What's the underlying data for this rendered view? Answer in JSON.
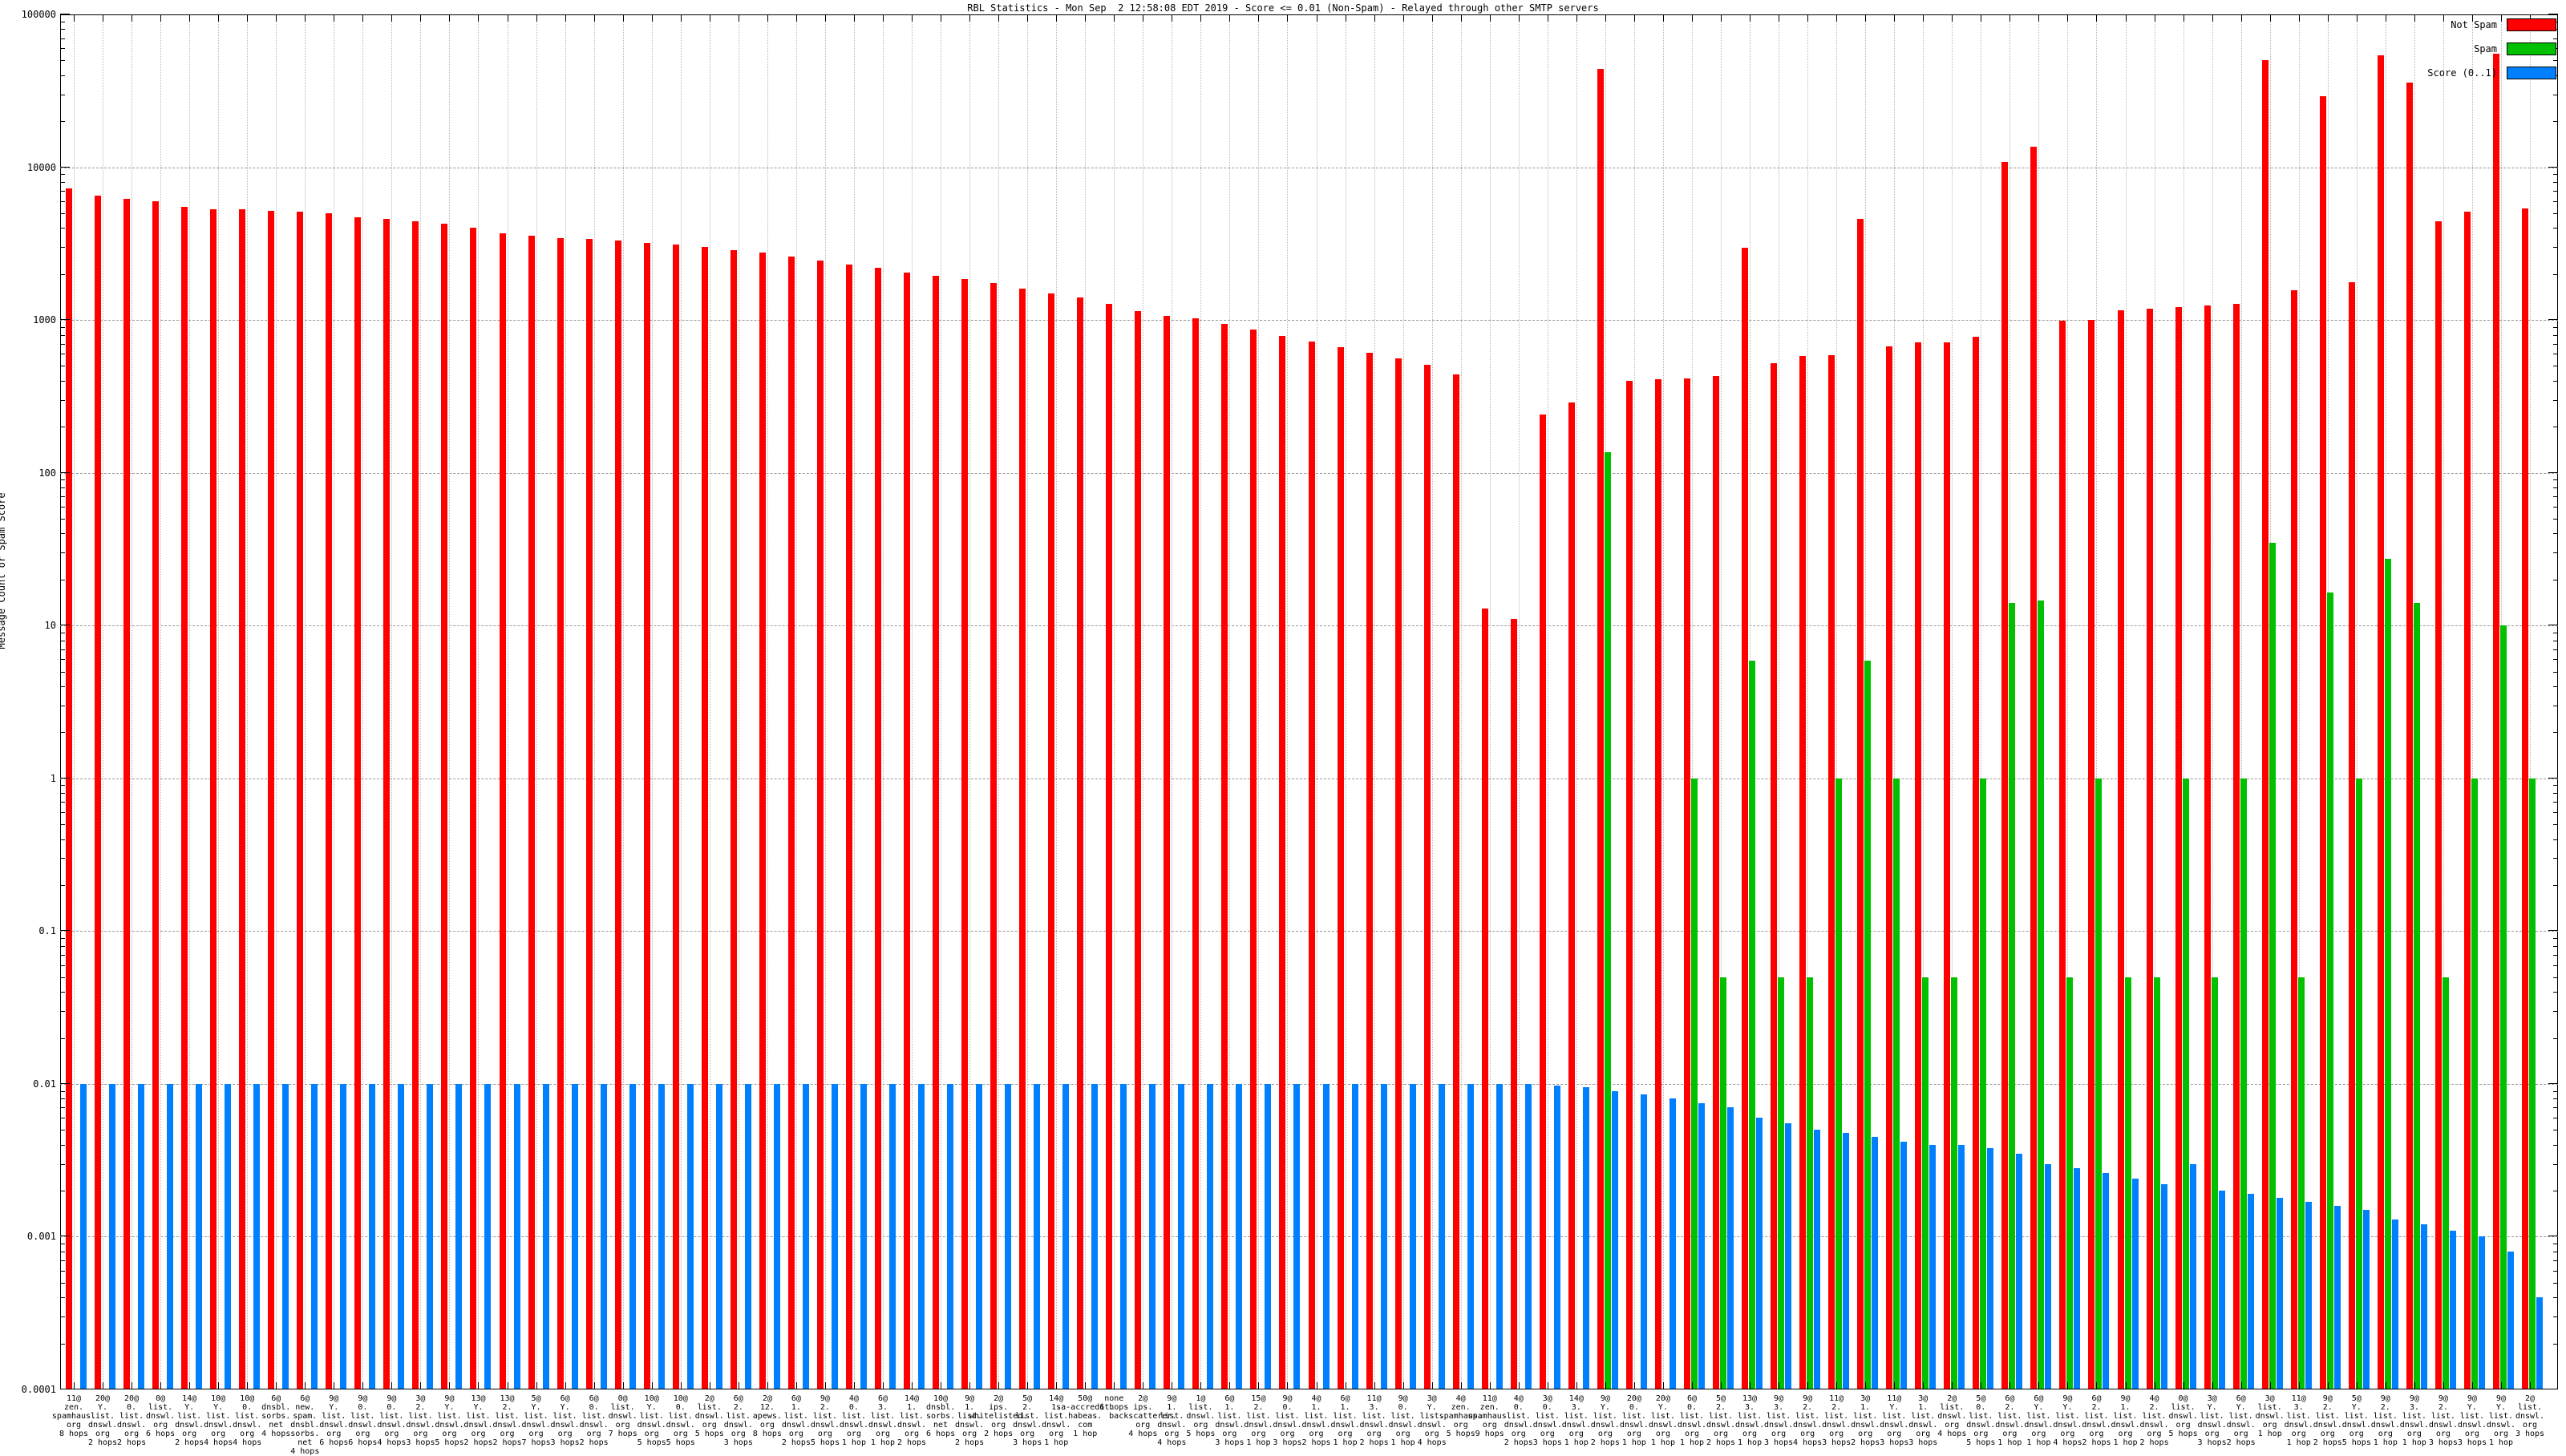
{
  "title": "RBL Statistics - Mon Sep  2 12:58:08 EDT 2019 - Score <= 0.01 (Non-Spam) - Relayed through other SMTP servers",
  "y_axis": {
    "label": "Message Count or Spam Score",
    "scale": "log",
    "min": 0.0001,
    "max": 100000,
    "ticks": [
      "100000",
      "10000",
      "1000",
      "100",
      "10",
      "1",
      "0.1",
      "0.01",
      "0.001",
      "0.0001"
    ]
  },
  "legend": [
    {
      "label": "Not Spam",
      "color": "#ff0000"
    },
    {
      "label": "Spam",
      "color": "#00c000"
    },
    {
      "label": "Score (0..1)",
      "color": "#0080ff"
    }
  ],
  "chart_data": {
    "type": "bar",
    "ylabel": "Message Count or Spam Score",
    "ylim": [
      0.0001,
      100000
    ],
    "grid": true,
    "legend_position": "top-right",
    "series_names": [
      "Not Spam",
      "Spam",
      "Score (0..1)"
    ],
    "groups": [
      {
        "count": "11@",
        "domain": "zen.spamhaus.org",
        "hops": "8 hops",
        "not_spam": 7300,
        "spam": null,
        "score": 0.01
      },
      {
        "count": "20@",
        "domain": "Y.list.dnswl.org",
        "hops": "2 hops",
        "not_spam": 6500,
        "spam": null,
        "score": 0.01
      },
      {
        "count": "20@",
        "domain": "0.list.dnswl.org",
        "hops": "2 hops",
        "not_spam": 6200,
        "spam": null,
        "score": 0.01
      },
      {
        "count": "0@",
        "domain": "list.dnswl.org",
        "hops": "6 hops",
        "not_spam": 6000,
        "spam": null,
        "score": 0.01
      },
      {
        "count": "14@",
        "domain": "Y.list.dnswl.org",
        "hops": "2 hops",
        "not_spam": 5500,
        "spam": null,
        "score": 0.01
      },
      {
        "count": "10@",
        "domain": "Y.list.dnswl.org",
        "hops": "4 hops",
        "not_spam": 5300,
        "spam": null,
        "score": 0.01
      },
      {
        "count": "10@",
        "domain": "0.list.dnswl.org",
        "hops": "4 hops",
        "not_spam": 5300,
        "spam": null,
        "score": 0.01
      },
      {
        "count": "6@",
        "domain": "dnsbl.sorbs.net",
        "hops": "4 hops",
        "not_spam": 5200,
        "spam": null,
        "score": 0.01
      },
      {
        "count": "6@",
        "domain": "new.spam.dnsbl.sorbs.net",
        "hops": "4 hops",
        "not_spam": 5100,
        "spam": null,
        "score": 0.01
      },
      {
        "count": "9@",
        "domain": "Y.list.dnswl.org",
        "hops": "6 hops",
        "not_spam": 5000,
        "spam": null,
        "score": 0.01
      },
      {
        "count": "9@",
        "domain": "0.list.dnswl.org",
        "hops": "6 hops",
        "not_spam": 4700,
        "spam": null,
        "score": 0.01
      },
      {
        "count": "9@",
        "domain": "0.list.dnswl.org",
        "hops": "4 hops",
        "not_spam": 4600,
        "spam": null,
        "score": 0.01
      },
      {
        "count": "3@",
        "domain": "2.list.dnswl.org",
        "hops": "3 hops",
        "not_spam": 4400,
        "spam": null,
        "score": 0.01
      },
      {
        "count": "9@",
        "domain": "Y.list.dnswl.org",
        "hops": "5 hops",
        "not_spam": 4250,
        "spam": null,
        "score": 0.01
      },
      {
        "count": "13@",
        "domain": "Y.list.dnswl.org",
        "hops": "2 hops",
        "not_spam": 4000,
        "spam": null,
        "score": 0.01
      },
      {
        "count": "13@",
        "domain": "2.list.dnswl.org",
        "hops": "2 hops",
        "not_spam": 3700,
        "spam": null,
        "score": 0.01
      },
      {
        "count": "5@",
        "domain": "Y.list.dnswl.org",
        "hops": "7 hops",
        "not_spam": 3550,
        "spam": null,
        "score": 0.01
      },
      {
        "count": "6@",
        "domain": "Y.list.dnswl.org",
        "hops": "3 hops",
        "not_spam": 3450,
        "spam": null,
        "score": 0.01
      },
      {
        "count": "6@",
        "domain": "0.list.dnswl.org",
        "hops": "2 hops",
        "not_spam": 3400,
        "spam": null,
        "score": 0.01
      },
      {
        "count": "0@",
        "domain": "list.dnswl.org",
        "hops": "7 hops",
        "not_spam": 3300,
        "spam": null,
        "score": 0.01
      },
      {
        "count": "10@",
        "domain": "Y.list.dnswl.org",
        "hops": "5 hops",
        "not_spam": 3200,
        "spam": null,
        "score": 0.01
      },
      {
        "count": "10@",
        "domain": "0.list.dnswl.org",
        "hops": "5 hops",
        "not_spam": 3100,
        "spam": null,
        "score": 0.01
      },
      {
        "count": "2@",
        "domain": "list.dnswl.org",
        "hops": "5 hops",
        "not_spam": 3000,
        "spam": null,
        "score": 0.01
      },
      {
        "count": "6@",
        "domain": "2.list.dnswl.org",
        "hops": "3 hops",
        "not_spam": 2850,
        "spam": null,
        "score": 0.01
      },
      {
        "count": "2@",
        "domain": "12.apews.org",
        "hops": "8 hops",
        "not_spam": 2750,
        "spam": null,
        "score": 0.01
      },
      {
        "count": "6@",
        "domain": "1.list.dnswl.org",
        "hops": "2 hops",
        "not_spam": 2600,
        "spam": null,
        "score": 0.01
      },
      {
        "count": "9@",
        "domain": "2.list.dnswl.org",
        "hops": "5 hops",
        "not_spam": 2450,
        "spam": null,
        "score": 0.01
      },
      {
        "count": "4@",
        "domain": "0.list.dnswl.org",
        "hops": "1 hop",
        "not_spam": 2300,
        "spam": null,
        "score": 0.01
      },
      {
        "count": "6@",
        "domain": "3.list.dnswl.org",
        "hops": "1 hop",
        "not_spam": 2200,
        "spam": null,
        "score": 0.01
      },
      {
        "count": "14@",
        "domain": "1.list.dnswl.org",
        "hops": "2 hops",
        "not_spam": 2050,
        "spam": null,
        "score": 0.01
      },
      {
        "count": "10@",
        "domain": "dnsbl.sorbs.net",
        "hops": "6 hops",
        "not_spam": 1950,
        "spam": null,
        "score": 0.01
      },
      {
        "count": "9@",
        "domain": "1.list.dnswl.org",
        "hops": "2 hops",
        "not_spam": 1850,
        "spam": null,
        "score": 0.01
      },
      {
        "count": "2@",
        "domain": "ips.whitelisted.org",
        "hops": "2 hops",
        "not_spam": 1750,
        "spam": null,
        "score": 0.01
      },
      {
        "count": "5@",
        "domain": "2.list.dnswl.org",
        "hops": "3 hops",
        "not_spam": 1600,
        "spam": null,
        "score": 0.01
      },
      {
        "count": "14@",
        "domain": "1.list.dnswl.org",
        "hops": "1 hop",
        "not_spam": 1500,
        "spam": null,
        "score": 0.01
      },
      {
        "count": "50@",
        "domain": "sa-accredit.habeas.com",
        "hops": "1 hop",
        "not_spam": 1400,
        "spam": null,
        "score": 0.01
      },
      {
        "count": "none",
        "domain": "",
        "hops": "6 hops",
        "not_spam": 1270,
        "spam": null,
        "score": 0.01
      },
      {
        "count": "2@",
        "domain": "ips.backscatterer.org",
        "hops": "4 hops",
        "not_spam": 1150,
        "spam": null,
        "score": 0.01
      },
      {
        "count": "9@",
        "domain": "1.list.dnswl.org",
        "hops": "4 hops",
        "not_spam": 1070,
        "spam": null,
        "score": 0.01
      },
      {
        "count": "1@",
        "domain": "list.dnswl.org",
        "hops": "5 hops",
        "not_spam": 1020,
        "spam": null,
        "score": 0.01
      },
      {
        "count": "6@",
        "domain": "1.list.dnswl.org",
        "hops": "3 hops",
        "not_spam": 940,
        "spam": null,
        "score": 0.01
      },
      {
        "count": "15@",
        "domain": "2.list.dnswl.org",
        "hops": "1 hop",
        "not_spam": 870,
        "spam": null,
        "score": 0.01
      },
      {
        "count": "9@",
        "domain": "0.list.dnswl.org",
        "hops": "3 hops",
        "not_spam": 790,
        "spam": null,
        "score": 0.01
      },
      {
        "count": "4@",
        "domain": "1.list.dnswl.org",
        "hops": "2 hops",
        "not_spam": 720,
        "spam": null,
        "score": 0.01
      },
      {
        "count": "6@",
        "domain": "1.list.dnswl.org",
        "hops": "1 hop",
        "not_spam": 660,
        "spam": null,
        "score": 0.01
      },
      {
        "count": "11@",
        "domain": "3.list.dnswl.org",
        "hops": "2 hops",
        "not_spam": 610,
        "spam": null,
        "score": 0.01
      },
      {
        "count": "9@",
        "domain": "0.list.dnswl.org",
        "hops": "1 hop",
        "not_spam": 560,
        "spam": null,
        "score": 0.01
      },
      {
        "count": "3@",
        "domain": "Y.list.dnswl.org",
        "hops": "4 hops",
        "not_spam": 510,
        "spam": null,
        "score": 0.01
      },
      {
        "count": "4@",
        "domain": "zen.spamhaus.org",
        "hops": "5 hops",
        "not_spam": 440,
        "spam": null,
        "score": 0.01
      },
      {
        "count": "11@",
        "domain": "zen.spamhaus.org",
        "hops": "9 hops",
        "not_spam": 13,
        "spam": null,
        "score": 0.01
      },
      {
        "count": "4@",
        "domain": "0.list.dnswl.org",
        "hops": "2 hops",
        "not_spam": 11,
        "spam": null,
        "score": 0.01
      },
      {
        "count": "3@",
        "domain": "0.list.dnswl.org",
        "hops": "3 hops",
        "not_spam": 240,
        "spam": null,
        "score": 0.0098
      },
      {
        "count": "14@",
        "domain": "3.list.dnswl.org",
        "hops": "1 hop",
        "not_spam": 290,
        "spam": null,
        "score": 0.0095
      },
      {
        "count": "9@",
        "domain": "Y.list.dnswl.org",
        "hops": "2 hops",
        "not_spam": 44000,
        "spam": 136,
        "score": 0.009
      },
      {
        "count": "20@",
        "domain": "0.list.dnswl.org",
        "hops": "1 hop",
        "not_spam": 400,
        "spam": null,
        "score": 0.0085
      },
      {
        "count": "20@",
        "domain": "Y.list.dnswl.org",
        "hops": "1 hop",
        "not_spam": 410,
        "spam": null,
        "score": 0.008
      },
      {
        "count": "6@",
        "domain": "0.list.dnswl.org",
        "hops": "1 hop",
        "not_spam": 415,
        "spam": 1.0,
        "score": 0.0075
      },
      {
        "count": "5@",
        "domain": "2.list.dnswl.org",
        "hops": "2 hops",
        "not_spam": 430,
        "spam": 0.05,
        "score": 0.007
      },
      {
        "count": "13@",
        "domain": "3.list.dnswl.org",
        "hops": "1 hop",
        "not_spam": 2980,
        "spam": 5.9,
        "score": 0.006
      },
      {
        "count": "9@",
        "domain": "3.list.dnswl.org",
        "hops": "3 hops",
        "not_spam": 520,
        "spam": 0.05,
        "score": 0.0055
      },
      {
        "count": "9@",
        "domain": "2.list.dnswl.org",
        "hops": "4 hops",
        "not_spam": 580,
        "spam": 0.05,
        "score": 0.005
      },
      {
        "count": "11@",
        "domain": "2.list.dnswl.org",
        "hops": "3 hops",
        "not_spam": 590,
        "spam": 1.0,
        "score": 0.0048
      },
      {
        "count": "3@",
        "domain": "1.list.dnswl.org",
        "hops": "2 hops",
        "not_spam": 4570,
        "spam": 5.9,
        "score": 0.0045
      },
      {
        "count": "11@",
        "domain": "Y.list.dnswl.org",
        "hops": "3 hops",
        "not_spam": 670,
        "spam": 1.0,
        "score": 0.0042
      },
      {
        "count": "3@",
        "domain": "1.list.dnswl.org",
        "hops": "3 hops",
        "not_spam": 710,
        "spam": 0.05,
        "score": 0.004
      },
      {
        "count": "2@",
        "domain": "list.dnswl.org",
        "hops": "4 hops",
        "not_spam": 710,
        "spam": 0.05,
        "score": 0.004
      },
      {
        "count": "5@",
        "domain": "0.list.dnswl.org",
        "hops": "5 hops",
        "not_spam": 780,
        "spam": 1.0,
        "score": 0.0038
      },
      {
        "count": "6@",
        "domain": "2.list.dnswl.org",
        "hops": "1 hop",
        "not_spam": 10800,
        "spam": 14,
        "score": 0.0035
      },
      {
        "count": "6@",
        "domain": "Y.list.dnswl.org",
        "hops": "1 hop",
        "not_spam": 13600,
        "spam": 14.6,
        "score": 0.003
      },
      {
        "count": "9@",
        "domain": "Y.list.dnswl.org",
        "hops": "4 hops",
        "not_spam": 990,
        "spam": 0.05,
        "score": 0.0028
      },
      {
        "count": "6@",
        "domain": "2.list.dnswl.org",
        "hops": "2 hops",
        "not_spam": 1000,
        "spam": 1.0,
        "score": 0.0026
      },
      {
        "count": "9@",
        "domain": "1.list.dnswl.org",
        "hops": "1 hop",
        "not_spam": 1160,
        "spam": 0.05,
        "score": 0.0024
      },
      {
        "count": "4@",
        "domain": "2.list.dnswl.org",
        "hops": "2 hops",
        "not_spam": 1180,
        "spam": 0.05,
        "score": 0.0022
      },
      {
        "count": "0@",
        "domain": "list.dnswl.org",
        "hops": "5 hops",
        "not_spam": 1220,
        "spam": 1.0,
        "score": 0.003
      },
      {
        "count": "3@",
        "domain": "Y.list.dnswl.org",
        "hops": "3 hops",
        "not_spam": 1250,
        "spam": 0.05,
        "score": 0.002
      },
      {
        "count": "6@",
        "domain": "Y.list.dnswl.org",
        "hops": "2 hops",
        "not_spam": 1270,
        "spam": 1.0,
        "score": 0.0019
      },
      {
        "count": "3@",
        "domain": "list.dnswl.org",
        "hops": "1 hop",
        "not_spam": 50000,
        "spam": 35,
        "score": 0.0018
      },
      {
        "count": "11@",
        "domain": "3.list.dnswl.org",
        "hops": "1 hop",
        "not_spam": 1560,
        "spam": 0.05,
        "score": 0.0017
      },
      {
        "count": "9@",
        "domain": "2.list.dnswl.org",
        "hops": "2 hops",
        "not_spam": 29000,
        "spam": 16.5,
        "score": 0.0016
      },
      {
        "count": "5@",
        "domain": "Y.list.dnswl.org",
        "hops": "5 hops",
        "not_spam": 1760,
        "spam": 1.0,
        "score": 0.0015
      },
      {
        "count": "9@",
        "domain": "2.list.dnswl.org",
        "hops": "1 hop",
        "not_spam": 54000,
        "spam": 27.5,
        "score": 0.0013
      },
      {
        "count": "9@",
        "domain": "3.list.dnswl.org",
        "hops": "1 hop",
        "not_spam": 36000,
        "spam": 14,
        "score": 0.0012
      },
      {
        "count": "9@",
        "domain": "2.list.dnswl.org",
        "hops": "3 hops",
        "not_spam": 4400,
        "spam": 0.05,
        "score": 0.0011
      },
      {
        "count": "9@",
        "domain": "Y.list.dnswl.org",
        "hops": "3 hops",
        "not_spam": 5100,
        "spam": 1.0,
        "score": 0.001
      },
      {
        "count": "9@",
        "domain": "Y.list.dnswl.org",
        "hops": "1 hop",
        "not_spam": 55000,
        "spam": 10,
        "score": 0.0008
      },
      {
        "count": "2@",
        "domain": "list.dnswl.org",
        "hops": "3 hops",
        "not_spam": 5400,
        "spam": 1.0,
        "score": 0.0004
      }
    ]
  }
}
